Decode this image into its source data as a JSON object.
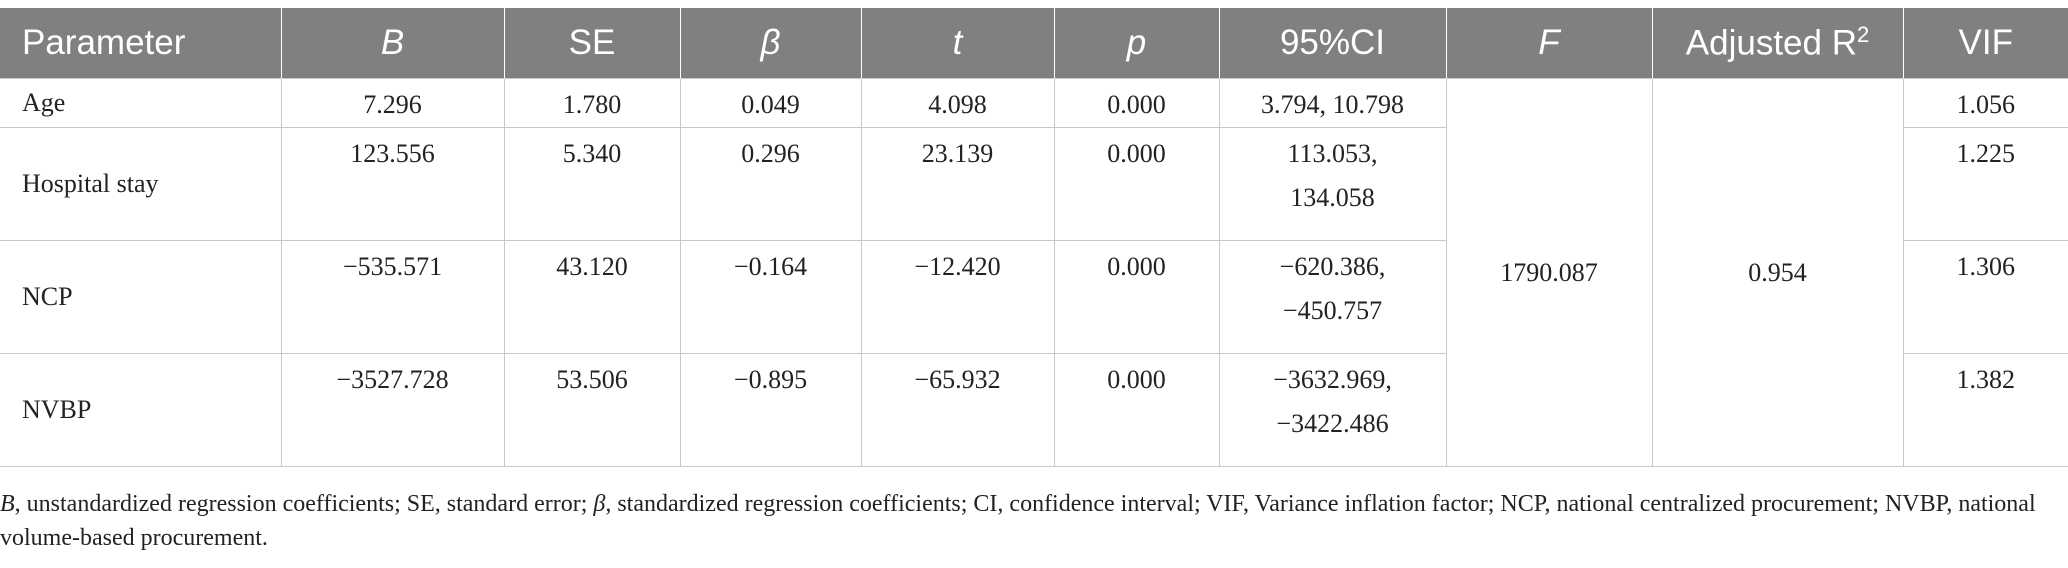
{
  "table": {
    "headers": [
      "Parameter",
      "B",
      "SE",
      "β",
      "t",
      "p",
      "95%CI",
      "F",
      "Adjusted R",
      "VIF"
    ],
    "adjusted_r_sup": "2",
    "rows": [
      {
        "parameter": "Age",
        "B": "7.296",
        "SE": "1.780",
        "beta": "0.049",
        "t": "4.098",
        "p": "0.000",
        "ci_line1": "3.794, 10.798",
        "ci_line2": "",
        "VIF": "1.056"
      },
      {
        "parameter": "Hospital stay",
        "B": "123.556",
        "SE": "5.340",
        "beta": "0.296",
        "t": "23.139",
        "p": "0.000",
        "ci_line1": "113.053,",
        "ci_line2": "134.058",
        "VIF": "1.225"
      },
      {
        "parameter": "NCP",
        "B": "−535.571",
        "SE": "43.120",
        "beta": "−0.164",
        "t": "−12.420",
        "p": "0.000",
        "ci_line1": "−620.386,",
        "ci_line2": "−450.757",
        "VIF": "1.306"
      },
      {
        "parameter": "NVBP",
        "B": "−3527.728",
        "SE": "53.506",
        "beta": "−0.895",
        "t": "−65.932",
        "p": "0.000",
        "ci_line1": "−3632.969,",
        "ci_line2": "−3422.486",
        "VIF": "1.382"
      }
    ],
    "F": "1790.087",
    "adjusted_r2": "0.954"
  },
  "footnote": {
    "b_symbol": "B",
    "b_text": ", unstandardized regression coefficients; SE, standard error; ",
    "beta_symbol": "β",
    "rest": ", standardized regression coefficients; CI, confidence interval; VIF, Variance inflation factor; NCP, national centralized procurement; NVBP, national volume-based procurement."
  }
}
